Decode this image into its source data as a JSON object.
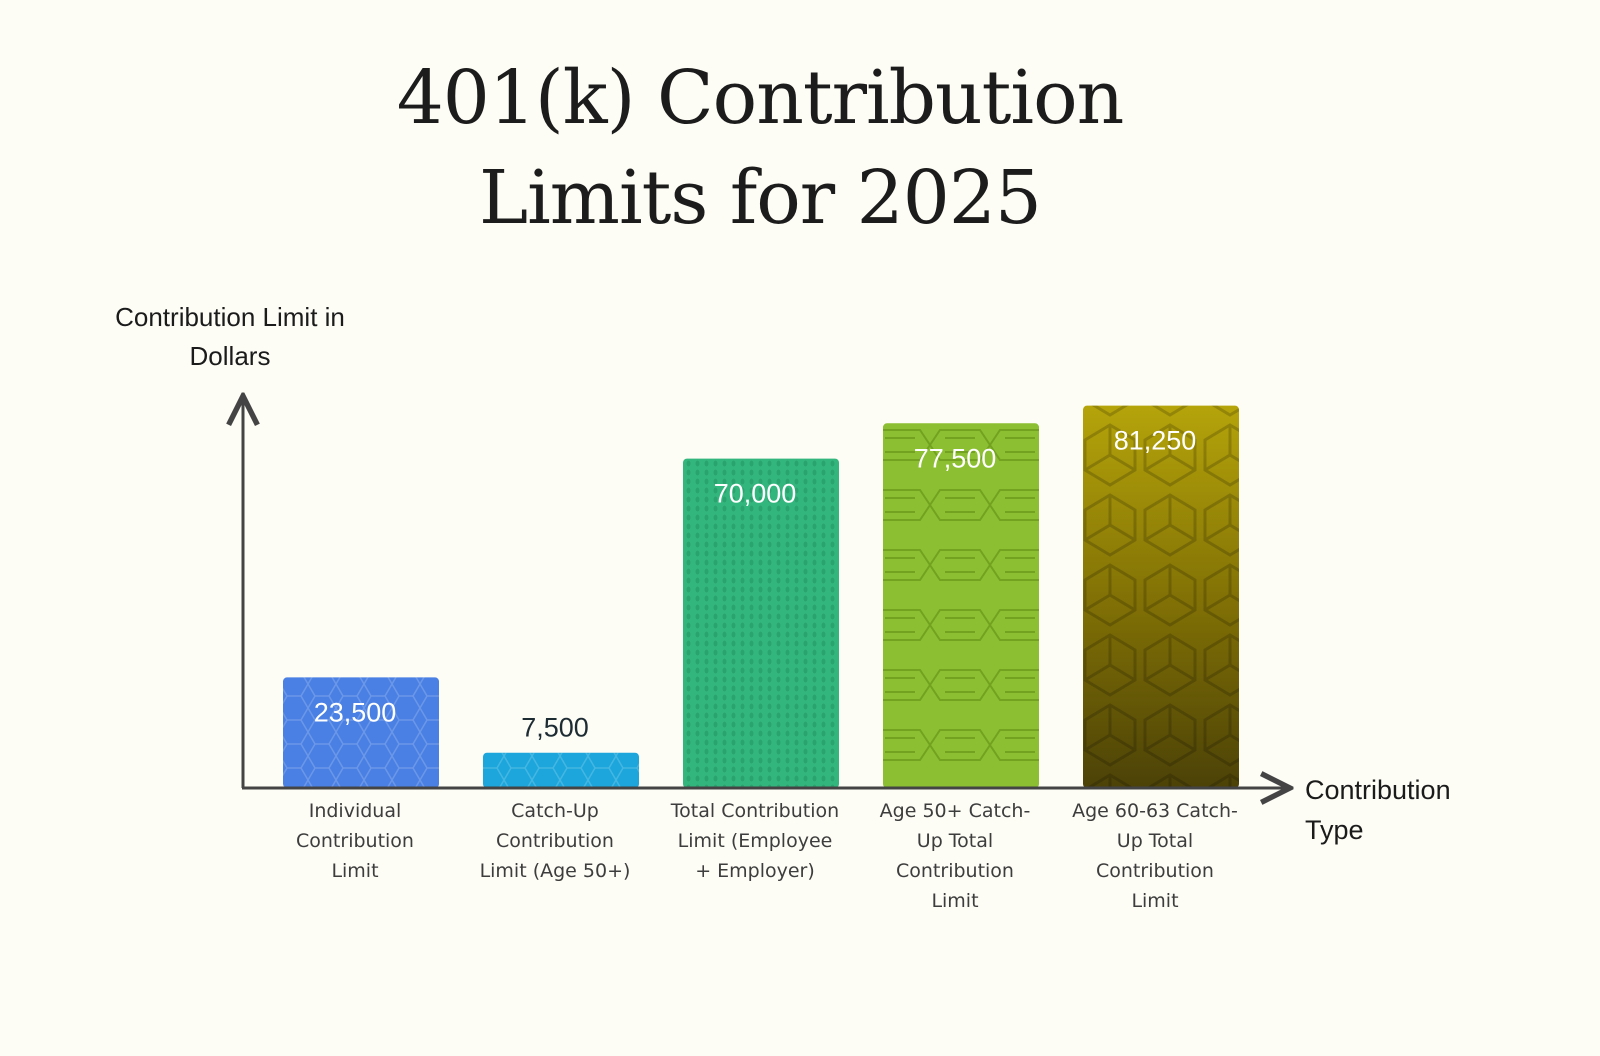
{
  "chart_data": {
    "type": "bar",
    "title": "401(k) Contribution Limits for 2025",
    "ylabel": "Contribution Limit in Dollars",
    "xlabel": "Contribution Type",
    "categories": [
      "Individual Contribution Limit",
      "Catch-Up Contribution Limit (Age 50+)",
      "Total Contribution Limit (Employee + Employer)",
      "Age 50+ Catch-Up Total Contribution Limit",
      "Age 60-63 Catch-Up Total Contribution Limit"
    ],
    "values": [
      23500,
      7500,
      70000,
      77500,
      81250
    ],
    "value_labels": [
      "23,500",
      "7,500",
      "70,000",
      "77,500",
      "81,250"
    ],
    "ylim": [
      0,
      85000
    ],
    "grid": false,
    "legend": "none",
    "colors": [
      "#4a80e3",
      "#1ca6dc",
      "#33b67e",
      "#8cbf32",
      "#5a4d05"
    ]
  }
}
